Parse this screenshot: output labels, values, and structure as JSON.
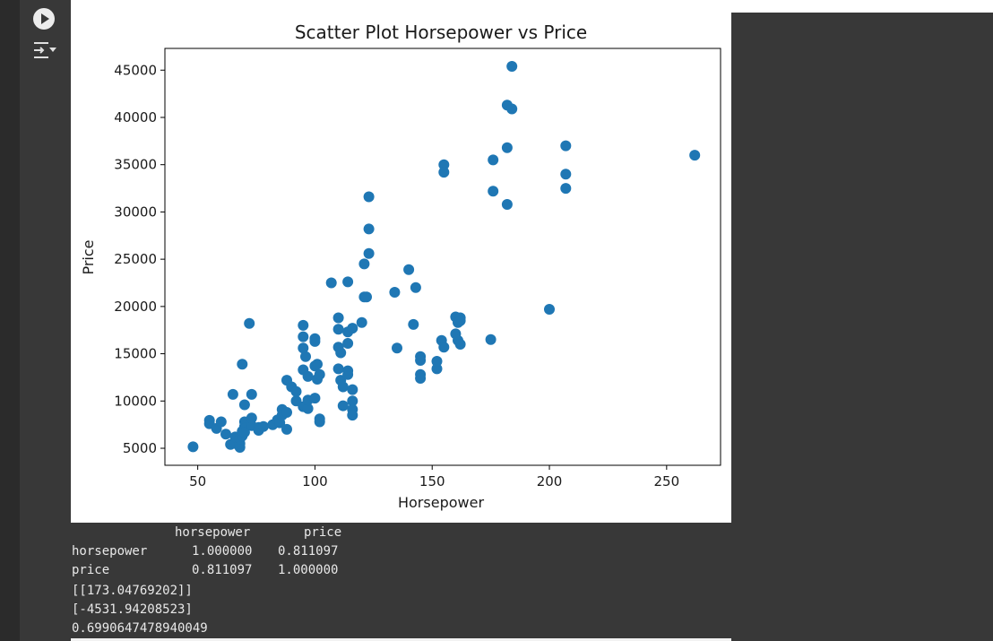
{
  "cell": {
    "run_icon": "play-icon",
    "output_toggle_icon": "output-collapse-icon"
  },
  "chart_data": {
    "type": "scatter",
    "title": "Scatter Plot Horsepower vs Price",
    "xlabel": "Horsepower",
    "ylabel": "Price",
    "xlim": [
      36,
      273
    ],
    "ylim": [
      3200,
      47300
    ],
    "xticks": [
      50,
      100,
      150,
      200,
      250
    ],
    "yticks": [
      5000,
      10000,
      15000,
      20000,
      25000,
      30000,
      35000,
      40000,
      45000
    ],
    "color": "#1f77b4",
    "grid": false,
    "points": [
      [
        48,
        5150
      ],
      [
        55,
        7950
      ],
      [
        55,
        7600
      ],
      [
        58,
        7100
      ],
      [
        60,
        7800
      ],
      [
        62,
        6500
      ],
      [
        64,
        5400
      ],
      [
        66,
        5500
      ],
      [
        66,
        6200
      ],
      [
        68,
        5100
      ],
      [
        68,
        5500
      ],
      [
        68,
        6000
      ],
      [
        69,
        6300
      ],
      [
        69,
        6800
      ],
      [
        70,
        7300
      ],
      [
        70,
        7800
      ],
      [
        70,
        7100
      ],
      [
        70,
        6700
      ],
      [
        73,
        7400
      ],
      [
        73,
        8200
      ],
      [
        76,
        7200
      ],
      [
        76,
        6900
      ],
      [
        78,
        7300
      ],
      [
        82,
        7500
      ],
      [
        84,
        8000
      ],
      [
        85,
        7700
      ],
      [
        86,
        9100
      ],
      [
        86,
        8500
      ],
      [
        88,
        7000
      ],
      [
        88,
        8800
      ],
      [
        70,
        9600
      ],
      [
        72,
        18200
      ],
      [
        69,
        13900
      ],
      [
        65,
        10700
      ],
      [
        73,
        10700
      ],
      [
        88,
        12200
      ],
      [
        90,
        11500
      ],
      [
        92,
        10000
      ],
      [
        95,
        9400
      ],
      [
        97,
        9200
      ],
      [
        97,
        10100
      ],
      [
        100,
        10300
      ],
      [
        101,
        12300
      ],
      [
        102,
        7800
      ],
      [
        102,
        8100
      ],
      [
        92,
        11000
      ],
      [
        95,
        18000
      ],
      [
        95,
        16800
      ],
      [
        95,
        15600
      ],
      [
        96,
        14700
      ],
      [
        95,
        13300
      ],
      [
        97,
        12600
      ],
      [
        100,
        16600
      ],
      [
        100,
        16300
      ],
      [
        100,
        13700
      ],
      [
        101,
        13900
      ],
      [
        102,
        12800
      ],
      [
        110,
        18800
      ],
      [
        110,
        17600
      ],
      [
        110,
        15700
      ],
      [
        111,
        15100
      ],
      [
        110,
        13400
      ],
      [
        111,
        12200
      ],
      [
        112,
        11500
      ],
      [
        112,
        9500
      ],
      [
        114,
        16100
      ],
      [
        114,
        17300
      ],
      [
        114,
        13200
      ],
      [
        114,
        12800
      ],
      [
        116,
        11200
      ],
      [
        116,
        10000
      ],
      [
        116,
        9100
      ],
      [
        116,
        8500
      ],
      [
        116,
        17700
      ],
      [
        107,
        22500
      ],
      [
        114,
        22600
      ],
      [
        120,
        18300
      ],
      [
        121,
        24500
      ],
      [
        121,
        21000
      ],
      [
        122,
        21000
      ],
      [
        123,
        25600
      ],
      [
        123,
        28200
      ],
      [
        123,
        31600
      ],
      [
        134,
        21500
      ],
      [
        135,
        15600
      ],
      [
        140,
        23900
      ],
      [
        142,
        18100
      ],
      [
        143,
        22000
      ],
      [
        145,
        12800
      ],
      [
        145,
        12400
      ],
      [
        145,
        14700
      ],
      [
        145,
        14300
      ],
      [
        152,
        13400
      ],
      [
        152,
        14200
      ],
      [
        154,
        16400
      ],
      [
        155,
        15700
      ],
      [
        155,
        35000
      ],
      [
        155,
        34200
      ],
      [
        160,
        18900
      ],
      [
        160,
        17100
      ],
      [
        161,
        18300
      ],
      [
        161,
        16400
      ],
      [
        162,
        18800
      ],
      [
        162,
        18500
      ],
      [
        162,
        16000
      ],
      [
        175,
        16500
      ],
      [
        176,
        35500
      ],
      [
        176,
        32200
      ],
      [
        182,
        41300
      ],
      [
        182,
        36800
      ],
      [
        182,
        30800
      ],
      [
        184,
        45400
      ],
      [
        184,
        40900
      ],
      [
        200,
        19700
      ],
      [
        207,
        37000
      ],
      [
        207,
        34000
      ],
      [
        207,
        32500
      ],
      [
        262,
        36000
      ]
    ]
  },
  "output_text": {
    "corr_header_h": "horsepower",
    "corr_header_p": "price",
    "rows": [
      {
        "label": "horsepower",
        "h": "1.000000",
        "p": "0.811097"
      },
      {
        "label": "price",
        "h": "0.811097",
        "p": "1.000000"
      }
    ],
    "line3": "[[173.04769202]]",
    "line4": "[-4531.94208523]",
    "line5": "0.6990647478940049"
  }
}
